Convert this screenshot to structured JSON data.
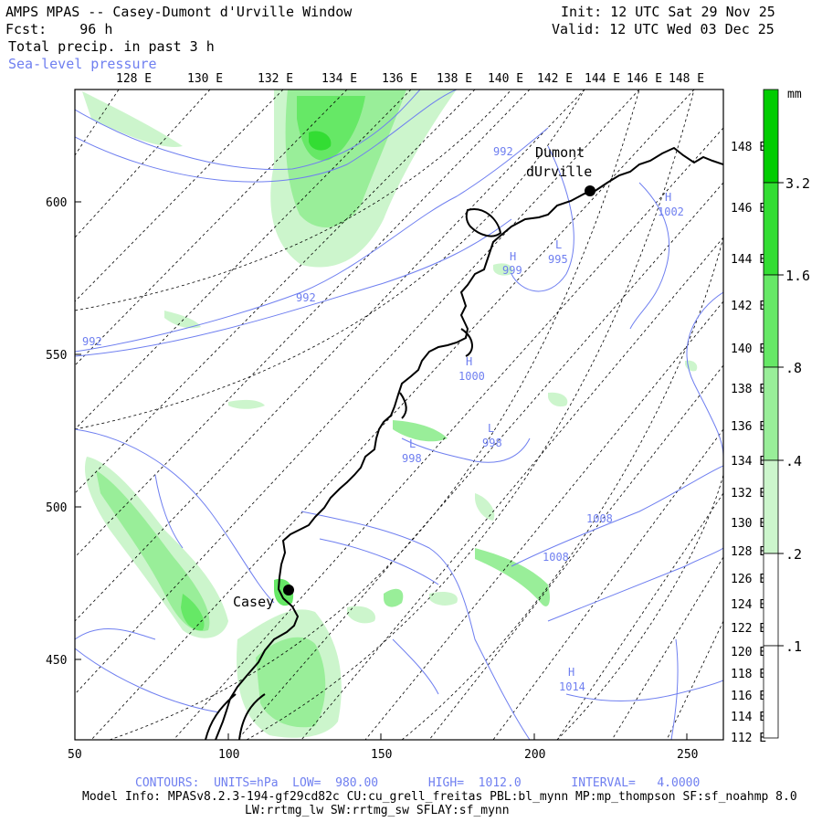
{
  "header": {
    "title": "AMPS MPAS -- Casey-Dumont d'Urville Window",
    "fcst": "Fcst:    96 h",
    "field": "Total precip. in past 3 h",
    "overlay": "Sea-level pressure",
    "init": "Init: 12 UTC Sat 29 Nov 25",
    "valid": "Valid: 12 UTC Wed 03 Dec 25"
  },
  "axes": {
    "bottom_ticks": [
      "50",
      "100",
      "150",
      "200",
      "250"
    ],
    "left_ticks": [
      "600",
      "550",
      "500",
      "450"
    ],
    "top_lon_labels": [
      "128 E",
      "130 E",
      "132 E",
      "134 E",
      "136 E",
      "138 E",
      "140 E",
      "142 E",
      "144 E",
      "146 E",
      "148 E"
    ],
    "right_lon_labels": [
      "148 E",
      "146 E",
      "144 E",
      "142 E",
      "140 E",
      "138 E",
      "136 E",
      "134 E",
      "132 E",
      "130 E",
      "128 E",
      "126 E",
      "124 E",
      "122 E",
      "120 E",
      "118 E",
      "116 E",
      "114 E",
      "112 E"
    ]
  },
  "colorbar": {
    "unit": "mm",
    "labels": [
      "3.2",
      "1.6",
      ".8",
      ".4",
      ".2",
      ".1"
    ],
    "colors": [
      "#00cc00",
      "#33dd33",
      "#66e866",
      "#99ee99",
      "#ccf5cc",
      "#ffffff"
    ]
  },
  "places": {
    "dumont_line1": "Dumont",
    "dumont_line2": "dUrville",
    "casey": "Casey"
  },
  "pressure_labels": {
    "l992_top": "992",
    "l992_mid": "992",
    "l992_left": "992",
    "h999": "H",
    "v999": "999",
    "l995": "L",
    "v995": "995",
    "h1002": "H",
    "v1002": "1002",
    "h1000": "H",
    "v1000": "1000",
    "l998a": "L",
    "v998a": "998",
    "l998b": "L",
    "v998b": "998",
    "v1008a": "1008",
    "v1008b": "1008",
    "h1014": "H",
    "v1014": "1014"
  },
  "footer": {
    "contours": "CONTOURS:  UNITS=hPa  LOW=  980.00       HIGH=  1012.0       INTERVAL=   4.0000",
    "model_info": "Model Info: MPASv8.2.3-194-gf29cd82c CU:cu_grell_freitas PBL:bl_mynn MP:mp_thompson SF:sf_noahmp 8.0",
    "physics": "LW:rrtmg_lw SW:rrtmg_sw SFLAY:sf_mynn"
  },
  "colors": {
    "contour": "#6f7ff0",
    "precip_light": "#ccf5cc",
    "precip_mid": "#99ee99",
    "precip_high": "#66e866",
    "precip_max": "#33dd33"
  }
}
